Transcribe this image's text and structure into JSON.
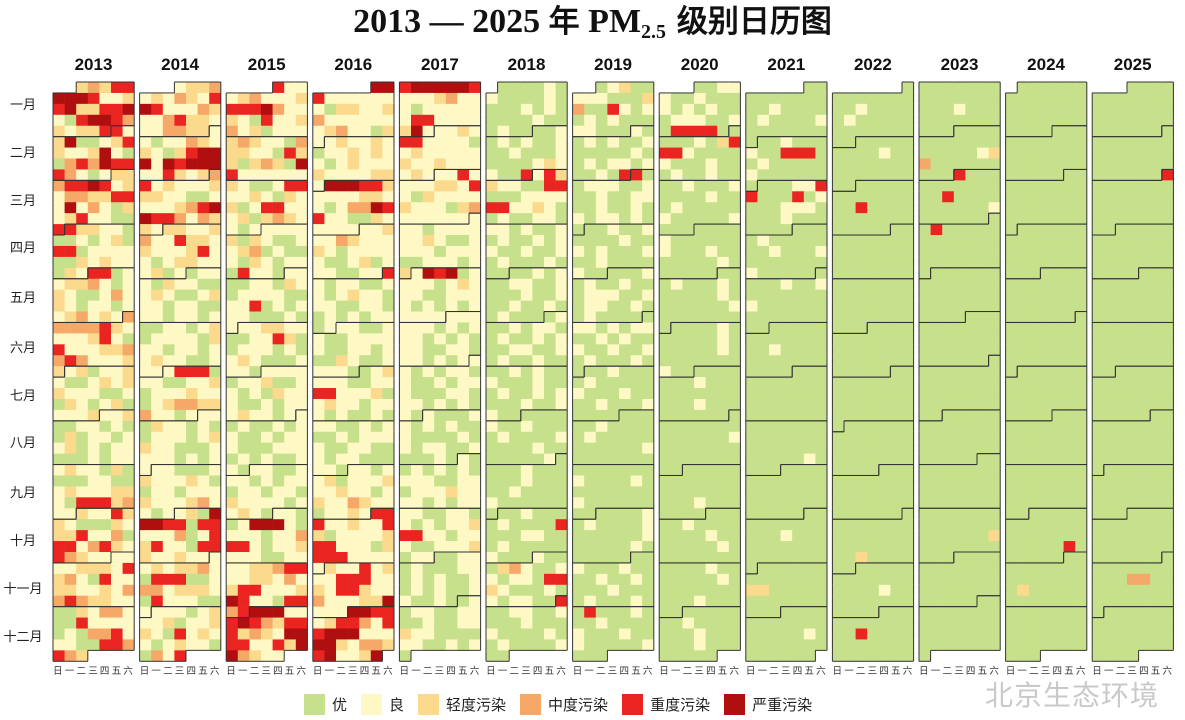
{
  "title": {
    "prefix": "2013 — 2025 ",
    "cjk_year": "年",
    "pm": " PM",
    "sub": "2.5",
    "suffix": " 级别日历图"
  },
  "month_labels": [
    "一月",
    "二月",
    "三月",
    "四月",
    "五月",
    "六月",
    "七月",
    "八月",
    "九月",
    "十月",
    "十一月",
    "十二月"
  ],
  "weekday_labels": [
    "日",
    "一",
    "二",
    "三",
    "四",
    "五",
    "六"
  ],
  "legend": [
    {
      "code": "1",
      "label": "优",
      "color": "#c6e08b"
    },
    {
      "code": "2",
      "label": "良",
      "color": "#fdf8c4"
    },
    {
      "code": "3",
      "label": "轻度污染",
      "color": "#fbd98d"
    },
    {
      "code": "4",
      "label": "中度污染",
      "color": "#f6a869"
    },
    {
      "code": "5",
      "label": "重度污染",
      "color": "#ea2420"
    },
    {
      "code": "6",
      "label": "严重污染",
      "color": "#b00f0f"
    }
  ],
  "watermark": "北京生态环境",
  "chart_data": {
    "type": "heatmap",
    "title": "2013 — 2025 年 PM2.5 级别日历图",
    "layout": "calendar, one column per year, weeks as rows, weekdays Sunday–Saturday as columns",
    "years": [
      {
        "year": "2013",
        "months": [
          "3435566652235633556215665432335",
          "5236112353223621145465554212",
          "3345565232443355262421323522115",
          "533221112123155122221132322132",
          "5512233421232112423212212234232",
          "444445322223521522233445422233",
          "2312232112323322211213212312223",
          "2231122121131221223121221112122",
          "232213111122112322233215553422",
          "3225332111323352241552453254322",
          "222233325342152233223244543322",
          "1132442115222212144522211554543"
        ]
      },
      {
        "year": "2014",
        "months": [
          "2334232432565222432245332224433",
          "2212243232135666265666225323",
          "4523222333221122223456655424332",
          "332234225332322235221233222312",
          "1222132211232112322122112212212",
          "112212312222132212212232211222",
          "2555122112231222322123443342212",
          "2213221211222123322111222212122",
          "221112322232112212223222342212",
          "2316665515522241253522155322322",
          "223233421555112442333215222112",
          "2221232231223321523221232211425"
        ]
      },
      {
        "year": "2015",
        "months": [
          "5222342223555642232152234231222",
          "3432214332215331343165222222",
          "3211255223213231255222313432212",
          "222231321122341211213212215221",
          "2211221321222211225121222111212",
          "223322112253112221212321112221",
          "2222122311221213222112122232212",
          "2121121221121222111222121211221",
          "221122212122122122132222122321",
          "2211266621222122455212232221122",
          "223345522332423552223652215545",
          "6662256543555343266552253664322"
        ]
      },
      {
        "year": "2016",
        "months": [
          "6652222222133223422222223422132",
          "2322321223232212322232222332",
          "6665532222332212446552211322222",
          "223224322232122222112312221122",
          "5212211221232212211221121212212",
          "221122112222211221211321122221",
          "1232221122552223123221222121121",
          "2211212112122221122112122111221",
          "221223122232232212322432212232",
          "5552232253122223552221355522222",
          "322523225552232553224222336222",
          "6655235542556662226632443562236"
        ]
      },
      {
        "year": "2017",
        "months": [
          "5666665222342221222222552222362",
          "2232552222123222223223222232",
          "2252222332521322223222134222222",
          "222122222232112222122211222123",
          "2656122221232221122221212122222",
          "222222121222121212211221221212",
          "2212122121121222111221221212121",
          "2111221212112111121212211211121",
          "211212121222112212223222212122",
          "2211221212122355221222112223122",
          "112212111221212112121211221121",
          "1212211221121122322111122112121"
        ]
      },
      {
        "year": "2018",
        "months": [
          "1111212111121111212111112111211",
          "1121212112112111211112322115",
          "2533221155111222255223211211221",
          "221211212112122112112121112111",
          "1121211221121112112112112112111",
          "121121221121121211221121211211",
          "1121211211121112112121112112211",
          "1111211211112111121111211111112",
          "111121111112111112111121111111",
          "1121111211115111221112111112111",
          "211134211221221553211121212211",
          "5112211211121112111121121111211"
        ]
      },
      {
        "year": "2019",
        "months": [
          "1231122211134115212121211122111",
          "2112121121111121121221211215",
          "5112221121121122112112121221211",
          "112112111121121211121121111211",
          "1112121121112221121221121121111",
          "122121221121211211211212111211",
          "1121111211111211121111211121111",
          "1111121111121111111111121111111",
          "111111121111211111111211111111",
          "1111212111121111112111112111111",
          "112111211112112111121111211121",
          "1511121112111121112112111112111"
        ]
      },
      {
        "year": "2020",
        "months": [
          "1122211211121212111222112155551",
          "11112135552111121112111211211",
          "1121112111121112111112111112111",
          "111121111112111211111112111111",
          "1112111211111121111111211111111",
          "111121111112111111211111111211",
          "1111111211111111111112111111111",
          "1111111111111121111111111111111",
          "111111111111111111111121111111",
          "1111121111111121111111211111111",
          "111121111111211111111111211111",
          "1111111211111112111111211111111"
        ]
      },
      {
        "year": "2021",
        "months": [
          "1111111111121111121111211111111",
          "1121112115551121111121111111",
          "1112255111512111222111121111111",
          "111121111111211121111111211111",
          "1111211211111112111111111111111",
          "111111111111112111111111111111",
          "1111111111111111111111111111111",
          "1111111111111111111111111121111",
          "111111111111111111111111111111",
          "1111111111112111111111111111111",
          "111111111111133111111111111111",
          "1111111111111111211111111111111"
        ]
      },
      {
        "year": "2022",
        "months": [
          "1111111111211111211111111111111",
          "1111111112111111111111111111",
          "1111111111111151111111111111111",
          "111111111111111111111111111111",
          "1111111111111111111111111111111",
          "111111111111111111111111111111",
          "1111111111111111111111111111111",
          "1111111111111111111111111111111",
          "111111111111111111111111111111",
          "1111111111111111111111113111111",
          "111111111111111121111111111111",
          "1111111111115111111111111111111"
        ]
      },
      {
        "year": "2023",
        "months": [
          "1111111111111111121111111111111",
          "1111111111111111234111111111",
          "5111111111111511111111112111111",
          "115111111111111111111111111111",
          "1111111111111111111111111111111",
          "111111111111111111111111111111",
          "1111111111111111111111111111111",
          "1111111111111111111111111111111",
          "111111111111111111111111111111",
          "1111111111111111111131111111111",
          "111111111111111111111111111111",
          "1111111111111111111111111111111"
        ]
      },
      {
        "year": "2024",
        "months": [
          "1111111111111111111111111111111",
          "11111111111111111111111111111",
          "1111111111111111111111111111111",
          "111111111111111111111111111111",
          "1111111111111111111111111111111",
          "111111111111111111111111111111",
          "1111111111111111111111111111111",
          "1111111111111111111111111111111",
          "111111111111111111111111111111",
          "1111111111111111111111115111111",
          "111111111111111113111111111111",
          "1111111111111111111111111111111"
        ]
      },
      {
        "year": "2025",
        "months": [
          "1111111111111111111111111111111",
          "1111111111111111111111111111",
          "5111111111111111111111111111111",
          "111111111111111111111111111111",
          "1111111111111111111111111111111",
          "111111111111111111111111111111",
          "1111111111111111111111111111111",
          "1111111111111111111111111111111",
          "111111111111111111111111111111",
          "1111111111111111111111111111111",
          "111111111114411111111111111111",
          "1111111111111111111111111111111"
        ]
      }
    ]
  }
}
